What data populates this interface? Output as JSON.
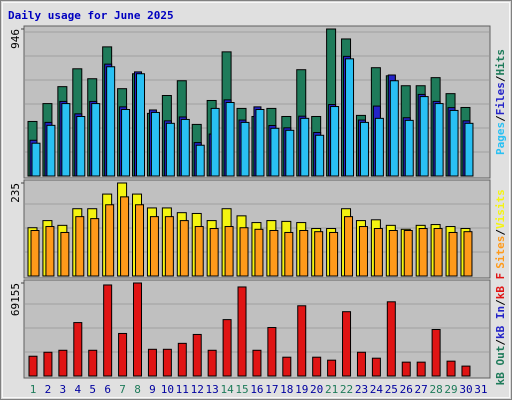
{
  "chart_data": [
    {
      "type": "bar",
      "title": "Daily usage for June 2025",
      "ylim": [
        0,
        946
      ],
      "yticks": [
        946
      ],
      "legend_separator": "/",
      "series": [
        {
          "name": "Hits",
          "color": "#1e7b5a",
          "values": [
            351,
            466,
            575,
            690,
            626,
            831,
            562,
            658,
            403,
            518,
            613,
            332,
            486,
            799,
            435,
            383,
            435,
            383,
            684,
            383,
            946,
            882,
            390,
            697,
            645,
            581,
            581,
            633,
            530,
            441,
            null
          ]
        },
        {
          "name": "Files",
          "color": "#2424c8",
          "values": [
            230,
            345,
            480,
            400,
            480,
            720,
            445,
            670,
            425,
            355,
            380,
            215,
            270,
            490,
            360,
            445,
            325,
            310,
            385,
            280,
            460,
            770,
            360,
            450,
            650,
            375,
            525,
            480,
            440,
            355,
            null
          ]
        },
        {
          "name": "Pages",
          "color": "#29c0f3",
          "values": [
            211,
            326,
            466,
            383,
            466,
            703,
            428,
            658,
            409,
            339,
            364,
            198,
            435,
            473,
            345,
            428,
            307,
            294,
            371,
            262,
            447,
            754,
            345,
            371,
            613,
            358,
            511,
            466,
            422,
            339,
            null
          ]
        }
      ]
    },
    {
      "type": "bar",
      "ylim": [
        0,
        235
      ],
      "yticks": [
        235
      ],
      "legend_separator": "/",
      "series": [
        {
          "name": "Visits",
          "color": "#f4f410",
          "values": [
            122,
            140,
            128,
            170,
            170,
            207,
            235,
            207,
            172,
            172,
            160,
            158,
            140,
            170,
            152,
            135,
            140,
            138,
            135,
            120,
            120,
            170,
            140,
            142,
            128,
            118,
            128,
            130,
            125,
            120,
            null
          ]
        },
        {
          "name": "Sites",
          "color": "#ff9a1a",
          "values": [
            115,
            125,
            110,
            150,
            145,
            180,
            200,
            180,
            150,
            150,
            140,
            125,
            120,
            125,
            122,
            118,
            115,
            110,
            115,
            112,
            110,
            150,
            125,
            120,
            115,
            115,
            120,
            120,
            110,
            112,
            null
          ]
        }
      ]
    },
    {
      "type": "bar",
      "ylim": [
        0,
        69155
      ],
      "yticks": [
        69155
      ],
      "legend_separator": "/",
      "categories": [
        "1",
        "2",
        "3",
        "4",
        "5",
        "6",
        "7",
        "8",
        "9",
        "10",
        "11",
        "12",
        "13",
        "14",
        "15",
        "16",
        "17",
        "18",
        "19",
        "20",
        "21",
        "22",
        "23",
        "24",
        "25",
        "26",
        "27",
        "28",
        "29",
        "30",
        "31"
      ],
      "category_colors": [
        "#1e7b5a",
        "#0000a0",
        "#0000a0",
        "#0000a0",
        "#0000a0",
        "#0000a0",
        "#1e7b5a",
        "#1e7b5a",
        "#0000a0",
        "#0000a0",
        "#0000a0",
        "#0000a0",
        "#0000a0",
        "#1e7b5a",
        "#1e7b5a",
        "#0000a0",
        "#0000a0",
        "#0000a0",
        "#0000a0",
        "#0000a0",
        "#1e7b5a",
        "#1e7b5a",
        "#0000a0",
        "#0000a0",
        "#0000a0",
        "#0000a0",
        "#0000a0",
        "#1e7b5a",
        "#1e7b5a",
        "#0000a0",
        "#0000a0"
      ],
      "series": [
        {
          "name": "kB F",
          "color": "#e01414",
          "values": [
            14700,
            17660,
            19130,
            39730,
            19130,
            67690,
            31630,
            69155,
            19860,
            19860,
            24280,
            30900,
            19130,
            41930,
            66210,
            19130,
            36050,
            13980,
            52230,
            13980,
            11770,
            47820,
            17660,
            13240,
            55180,
            10300,
            10300,
            34580,
            11040,
            7360,
            null
          ]
        },
        {
          "name": "kB In",
          "color": "#2424c8",
          "values": [
            null,
            null,
            null,
            null,
            null,
            null,
            null,
            null,
            null,
            null,
            null,
            null,
            null,
            null,
            null,
            null,
            null,
            null,
            null,
            null,
            null,
            null,
            null,
            null,
            null,
            null,
            null,
            null,
            null,
            null,
            null
          ]
        },
        {
          "name": "kB Out",
          "color": "#1e7b5a",
          "values": [
            null,
            null,
            null,
            null,
            null,
            null,
            null,
            null,
            null,
            null,
            null,
            null,
            null,
            null,
            null,
            null,
            null,
            null,
            null,
            null,
            null,
            null,
            null,
            null,
            null,
            null,
            null,
            null,
            null,
            null,
            null
          ]
        }
      ]
    }
  ]
}
